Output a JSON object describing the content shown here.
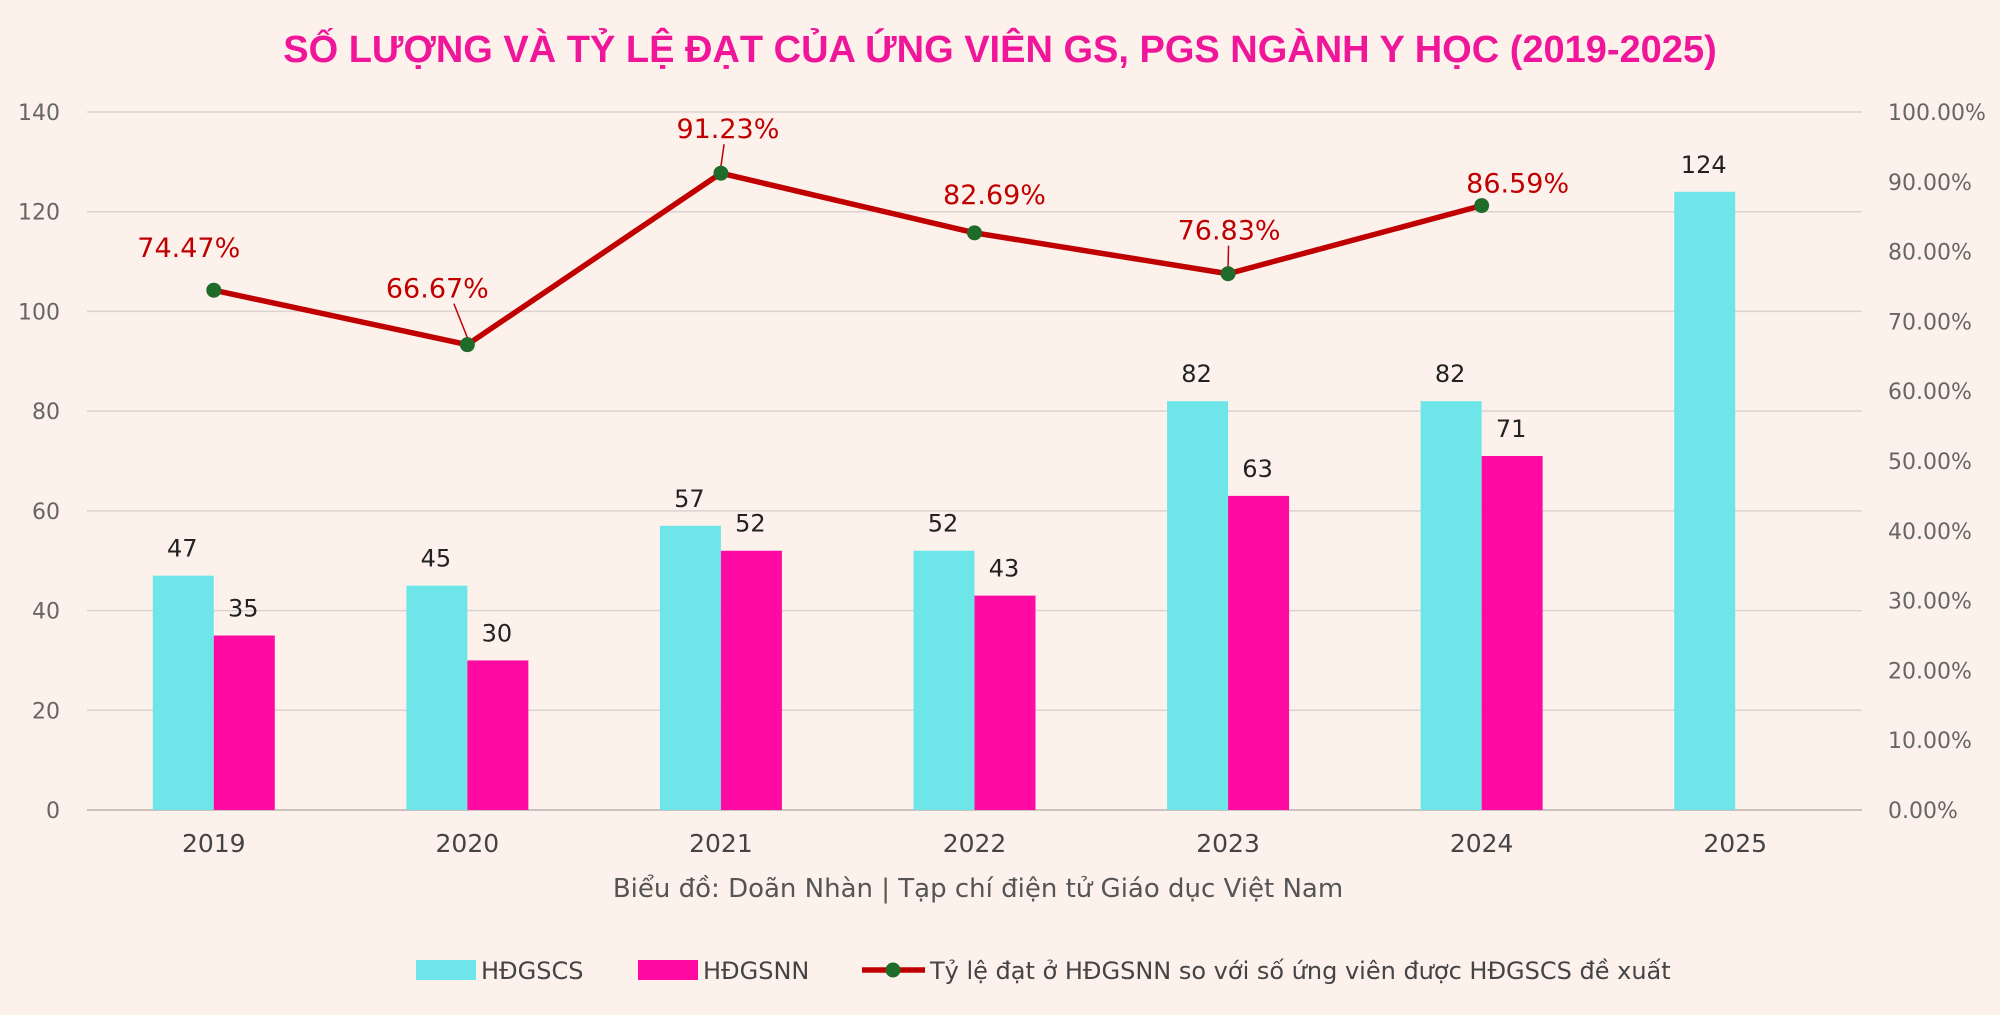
{
  "chart_data": {
    "type": "bar",
    "title": "SỐ LƯỢNG VÀ TỶ LỆ ĐẠT CỦA ỨNG VIÊN GS, PGS NGÀNH Y HỌC (2019-2025)",
    "source": "Biểu đồ: Doãn Nhàn | Tạp chí điện tử Giáo dục Việt Nam",
    "categories": [
      "2019",
      "2020",
      "2021",
      "2022",
      "2023",
      "2024",
      "2025"
    ],
    "series": [
      {
        "name": "HĐGSCS",
        "type": "bar",
        "axis": "left",
        "color": "#6ee5e8",
        "values": [
          47,
          45,
          57,
          52,
          82,
          82,
          124
        ]
      },
      {
        "name": "HĐGSNN",
        "type": "bar",
        "axis": "left",
        "color": "#ff0aa3",
        "values": [
          35,
          30,
          52,
          43,
          63,
          71,
          null
        ]
      },
      {
        "name": "Tỷ lệ đạt ở HĐGSNN so với số ứng viên được HĐGSCS đề xuất",
        "type": "line",
        "axis": "right",
        "color": "#c00000",
        "marker_color": "#1e6b2a",
        "values": [
          74.47,
          66.67,
          91.23,
          82.69,
          76.83,
          86.59,
          null
        ],
        "labels": [
          "74.47%",
          "66.67%",
          "91.23%",
          "82.69%",
          "76.83%",
          "86.59%",
          ""
        ]
      }
    ],
    "y_left": {
      "min": 0,
      "max": 140,
      "step": 20,
      "ticks": [
        "0",
        "20",
        "40",
        "60",
        "80",
        "100",
        "120",
        "140"
      ]
    },
    "y_right": {
      "min": 0,
      "max": 100,
      "step": 10,
      "ticks": [
        "0.00%",
        "10.00%",
        "20.00%",
        "30.00%",
        "40.00%",
        "50.00%",
        "60.00%",
        "70.00%",
        "80.00%",
        "90.00%",
        "100.00%"
      ]
    },
    "grid": true,
    "legend_position": "bottom",
    "title_color": "#f0169a",
    "percent_label_color": "#c00000"
  }
}
